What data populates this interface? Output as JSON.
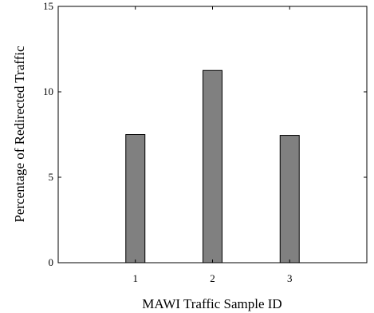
{
  "chart_data": {
    "type": "bar",
    "categories": [
      "1",
      "2",
      "3"
    ],
    "values": [
      7.5,
      11.25,
      7.45
    ],
    "xlabel": "MAWI Traffic Sample ID",
    "ylabel": "Percentage of Redirected Traffic",
    "xlim": [
      0,
      4
    ],
    "ylim": [
      0,
      15
    ],
    "yticks": [
      0,
      5,
      10,
      15
    ],
    "bar_color": "#808080",
    "grid": false
  }
}
